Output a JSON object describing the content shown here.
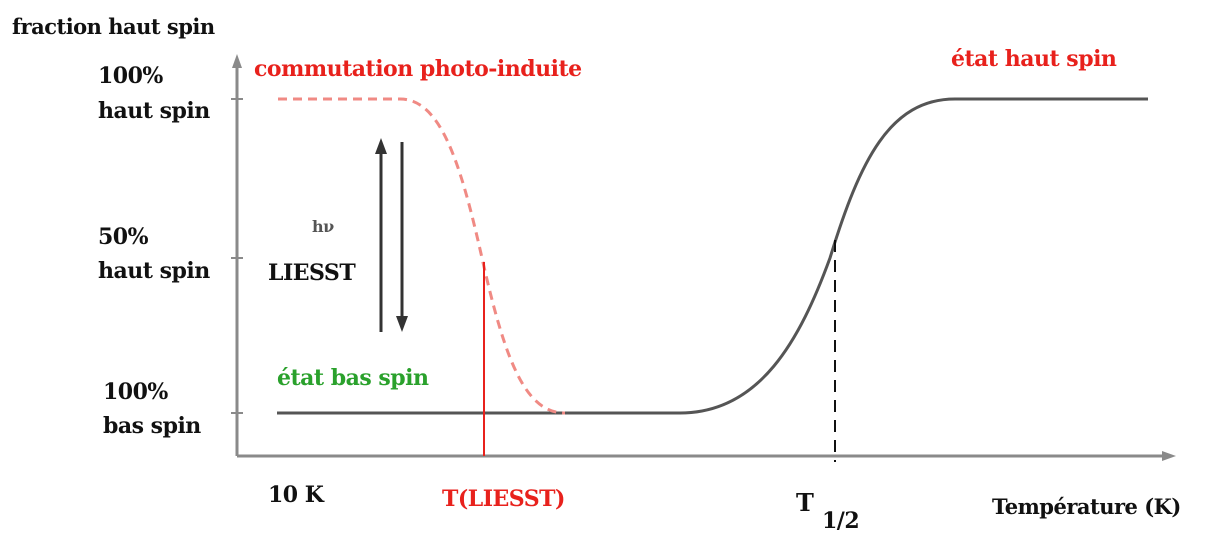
{
  "y_axis_title": "fraction haut spin",
  "y_labels": {
    "top_pct": "100%",
    "top_text": "haut spin",
    "mid_pct": "50%",
    "mid_text": "haut spin",
    "bot_pct": "100%",
    "bot_text": "bas spin"
  },
  "annotations": {
    "photo_switch": "commutation photo-induite",
    "high_spin_state": "état haut spin",
    "low_spin_state": "état bas spin",
    "hv": "hν",
    "liesst": "LIESST"
  },
  "x_labels": {
    "start": "10 K",
    "t_liesst": "T(LIESST)",
    "t_half_main": "T",
    "t_half_sub": "1/2",
    "x_axis_title": "Température (K)"
  },
  "colors": {
    "axis": "#8a8a8a",
    "curve": "#555555",
    "red": "#e8211c",
    "dashed_red": "#f08a84",
    "green": "#2aa12c",
    "arrow": "#333333"
  }
}
